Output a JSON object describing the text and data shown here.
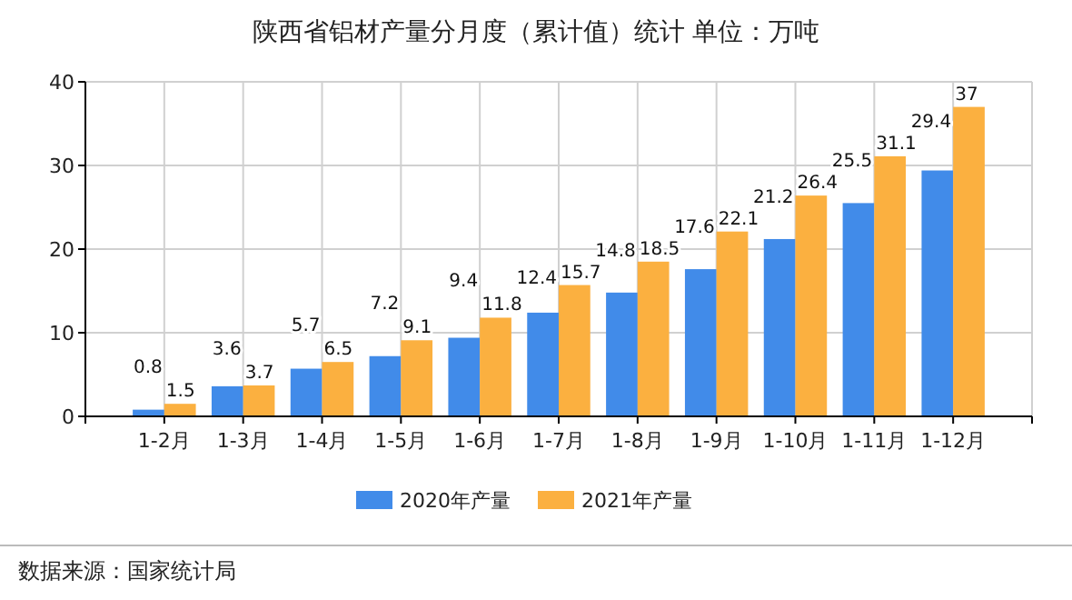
{
  "chart_data": {
    "type": "bar",
    "title": "陕西省铝材产量分月度（累计值）统计 单位：万吨",
    "categories": [
      "1-2月",
      "1-3月",
      "1-4月",
      "1-5月",
      "1-6月",
      "1-7月",
      "1-8月",
      "1-9月",
      "1-10月",
      "1-11月",
      "1-12月"
    ],
    "series": [
      {
        "name": "2020年产量",
        "color": "#418be9",
        "values": [
          0.8,
          3.6,
          5.7,
          7.2,
          9.4,
          12.4,
          14.8,
          17.6,
          21.2,
          25.5,
          29.4
        ]
      },
      {
        "name": "2021年产量",
        "color": "#fbb040",
        "values": [
          1.5,
          3.7,
          6.5,
          9.1,
          11.8,
          15.7,
          18.5,
          22.1,
          26.4,
          31.1,
          37
        ]
      }
    ],
    "ylim": [
      0,
      40
    ],
    "yticks": [
      0,
      10,
      20,
      30,
      40
    ],
    "grid": true,
    "legend": "bottom",
    "data_labels": true,
    "annotations": [
      "数据来源：国家统计局"
    ]
  }
}
